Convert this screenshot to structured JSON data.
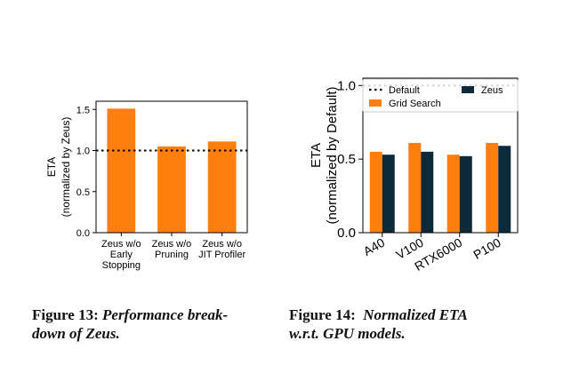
{
  "colors": {
    "zeus_wo": "#ff7f0e",
    "grid_search": "#ff7f0e",
    "zeus": "#0d2a3a",
    "reference": "#000000"
  },
  "chart_data": [
    {
      "type": "bar",
      "categories": [
        [
          "Zeus w/o",
          "Early",
          "Stopping"
        ],
        [
          "Zeus w/o",
          "Pruning"
        ],
        [
          "Zeus w/o",
          "JIT Profiler"
        ]
      ],
      "values": [
        1.51,
        1.05,
        1.11
      ],
      "ylabel": [
        "ETA",
        "(normalized by Zeus)"
      ],
      "ylim": [
        0,
        1.6
      ],
      "yticks": [
        0.0,
        0.5,
        1.0,
        1.5
      ],
      "ytick_labels": [
        "0.0",
        "0.5",
        "1.0",
        "1.5"
      ],
      "reference_line": 1.0,
      "grid": false
    },
    {
      "type": "bar",
      "categories": [
        "A40",
        "V100",
        "RTX6000",
        "P100"
      ],
      "series": [
        {
          "name": "Grid Search",
          "values": [
            0.55,
            0.61,
            0.53,
            0.61
          ]
        },
        {
          "name": "Zeus",
          "values": [
            0.53,
            0.55,
            0.52,
            0.59
          ]
        }
      ],
      "reference": {
        "name": "Default",
        "value": 1.0
      },
      "ylabel": [
        "ETA",
        "(normalized by Default)"
      ],
      "ylim": [
        0,
        1.05
      ],
      "yticks": [
        0.0,
        0.5,
        1.0
      ],
      "ytick_labels": [
        "0.0",
        "0.5",
        "1.0"
      ],
      "xtick_rotation": 30,
      "legend": "top",
      "grid": false
    }
  ],
  "captions": {
    "fig13": {
      "label": "Figure 13:",
      "line1": "Performance break-",
      "line2": "down of Zeus."
    },
    "fig14": {
      "label": "Figure 14:",
      "line1": "Normalized ETA",
      "line2": "w.r.t. GPU models."
    }
  }
}
